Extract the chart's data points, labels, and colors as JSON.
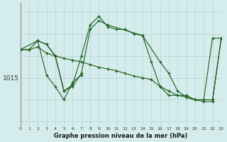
{
  "xlabel": "Graphe pression niveau de la mer (hPa)",
  "background_color": "#d5ecec",
  "grid_color_v": "#b8d8d8",
  "grid_color_h": "#b8d8d8",
  "line_color": "#1a5c1a",
  "y_label_value": 1015,
  "xlim": [
    0,
    23
  ],
  "ylim": [
    1009.5,
    1023.5
  ],
  "xticks": [
    0,
    1,
    2,
    3,
    4,
    5,
    6,
    7,
    8,
    9,
    10,
    11,
    12,
    13,
    14,
    15,
    16,
    17,
    18,
    19,
    20,
    21,
    22,
    23
  ],
  "series": [
    {
      "x": [
        0,
        1,
        2,
        3,
        4,
        5,
        6,
        7,
        8,
        9,
        10,
        11,
        12,
        13,
        14,
        15,
        16,
        17,
        18,
        19,
        20,
        21,
        22,
        23
      ],
      "y": [
        1018.2,
        1018.2,
        1019.2,
        1018.8,
        1017.5,
        1013.5,
        1014.2,
        1017.5,
        1021.0,
        1022.0,
        1020.8,
        1020.5,
        1020.5,
        1020.0,
        1019.8,
        1016.8,
        1014.0,
        1013.0,
        1013.0,
        1013.0,
        1012.5,
        1012.5,
        1019.5,
        1019.5
      ]
    },
    {
      "x": [
        0,
        1,
        2,
        3,
        4,
        5,
        6,
        7,
        8,
        9,
        10,
        11,
        12,
        13,
        14,
        15,
        16,
        17,
        18,
        19,
        20,
        21,
        22,
        23
      ],
      "y": [
        1018.2,
        1018.2,
        1018.5,
        1017.8,
        1017.5,
        1017.2,
        1017.0,
        1016.8,
        1016.5,
        1016.2,
        1016.0,
        1015.8,
        1015.5,
        1015.2,
        1015.0,
        1014.8,
        1014.0,
        1013.5,
        1013.0,
        1012.8,
        1012.5,
        1012.5,
        1012.5,
        1019.5
      ]
    },
    {
      "x": [
        0,
        2,
        3,
        4,
        5,
        6,
        7,
        8,
        9,
        10,
        14,
        16,
        17,
        18,
        19,
        20,
        21,
        22,
        23
      ],
      "y": [
        1018.2,
        1019.2,
        1018.8,
        1017.5,
        1013.5,
        1014.0,
        1015.5,
        1020.5,
        1021.5,
        1021.0,
        1019.8,
        1016.8,
        1015.5,
        1013.5,
        1012.8,
        1012.5,
        1012.3,
        1012.3,
        1019.5
      ]
    }
  ],
  "series_small": [
    {
      "x": [
        2,
        3,
        4,
        5,
        6,
        7
      ],
      "y": [
        1019.2,
        1015.3,
        1014.0,
        1012.5,
        1014.5,
        1015.3
      ]
    }
  ]
}
